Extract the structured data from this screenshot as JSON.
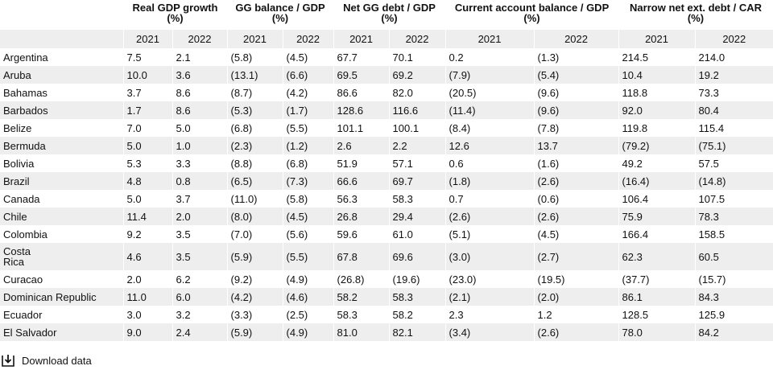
{
  "header": {
    "groups": [
      {
        "title": "Real GDP growth",
        "unit": "(%)"
      },
      {
        "title": "GG balance / GDP",
        "unit": "(%)"
      },
      {
        "title": "Net GG debt / GDP",
        "unit": "(%)"
      },
      {
        "title": "Current account balance / GDP",
        "unit": "(%)"
      },
      {
        "title": "Narrow net ext. debt / CAR",
        "unit": "(%)"
      }
    ],
    "years": [
      "2021",
      "2022",
      "2021",
      "2022",
      "2021",
      "2022",
      "2021",
      "2022",
      "2021",
      "2022"
    ]
  },
  "rows": [
    {
      "country": "Argentina",
      "values": [
        "7.5",
        "2.1",
        "(5.8)",
        "(4.5)",
        "67.7",
        "70.1",
        "0.2",
        "(1.3)",
        "214.5",
        "214.0"
      ]
    },
    {
      "country": "Aruba",
      "values": [
        "10.0",
        "3.6",
        "(13.1)",
        "(6.6)",
        "69.5",
        "69.2",
        "(7.9)",
        "(5.4)",
        "10.4",
        "19.2"
      ]
    },
    {
      "country": "Bahamas",
      "values": [
        "3.7",
        "8.6",
        "(8.7)",
        "(4.2)",
        "86.6",
        "82.0",
        "(20.5)",
        "(9.6)",
        "118.8",
        "73.3"
      ]
    },
    {
      "country": "Barbados",
      "values": [
        "1.7",
        "8.6",
        "(5.3)",
        "(1.7)",
        "128.6",
        "116.6",
        "(11.4)",
        "(9.6)",
        "92.0",
        "80.4"
      ]
    },
    {
      "country": "Belize",
      "values": [
        "7.0",
        "5.0",
        "(6.8)",
        "(5.5)",
        "101.1",
        "100.1",
        "(8.4)",
        "(7.8)",
        "119.8",
        "115.4"
      ]
    },
    {
      "country": "Bermuda",
      "values": [
        "5.0",
        "1.0",
        "(2.3)",
        "(1.2)",
        "2.6",
        "2.2",
        "12.6",
        "13.7",
        "(79.2)",
        "(75.1)"
      ]
    },
    {
      "country": "Bolivia",
      "values": [
        "5.3",
        "3.3",
        "(8.8)",
        "(6.8)",
        "51.9",
        "57.1",
        "0.6",
        "(1.6)",
        "49.2",
        "57.5"
      ]
    },
    {
      "country": "Brazil",
      "values": [
        "4.8",
        "0.8",
        "(6.5)",
        "(7.3)",
        "66.6",
        "69.7",
        "(1.8)",
        "(2.6)",
        "(16.4)",
        "(14.8)"
      ]
    },
    {
      "country": "Canada",
      "values": [
        "5.0",
        "3.7",
        "(11.0)",
        "(5.8)",
        "56.3",
        "58.3",
        "0.7",
        "(0.6)",
        "106.4",
        "107.5"
      ]
    },
    {
      "country": "Chile",
      "values": [
        "11.4",
        "2.0",
        "(8.0)",
        "(4.5)",
        "26.8",
        "29.4",
        "(2.6)",
        "(2.6)",
        "75.9",
        "78.3"
      ]
    },
    {
      "country": "Colombia",
      "values": [
        "9.2",
        "3.5",
        "(7.0)",
        "(5.6)",
        "59.6",
        "61.0",
        "(5.1)",
        "(4.5)",
        "166.4",
        "158.5"
      ]
    },
    {
      "country": "Costa Rica",
      "values": [
        "4.6",
        "3.5",
        "(5.9)",
        "(5.5)",
        "67.8",
        "69.6",
        "(3.0)",
        "(2.7)",
        "62.3",
        "60.5"
      ]
    },
    {
      "country": "Curacao",
      "values": [
        "2.0",
        "6.2",
        "(9.2)",
        "(4.9)",
        "(26.8)",
        "(19.6)",
        "(23.0)",
        "(19.5)",
        "(37.7)",
        "(15.7)"
      ]
    },
    {
      "country": "Dominican Republic",
      "values": [
        "11.0",
        "6.0",
        "(4.2)",
        "(4.6)",
        "58.2",
        "58.3",
        "(2.1)",
        "(2.0)",
        "86.1",
        "84.3"
      ]
    },
    {
      "country": "Ecuador",
      "values": [
        "3.0",
        "3.2",
        "(3.3)",
        "(2.5)",
        "58.3",
        "58.2",
        "2.3",
        "1.2",
        "128.5",
        "125.9"
      ]
    },
    {
      "country": "El Salvador",
      "values": [
        "9.0",
        "2.4",
        "(5.9)",
        "(4.9)",
        "81.0",
        "82.1",
        "(3.4)",
        "(2.6)",
        "78.0",
        "84.2"
      ]
    }
  ],
  "download": {
    "label": "Download data",
    "icon": "download-icon"
  }
}
